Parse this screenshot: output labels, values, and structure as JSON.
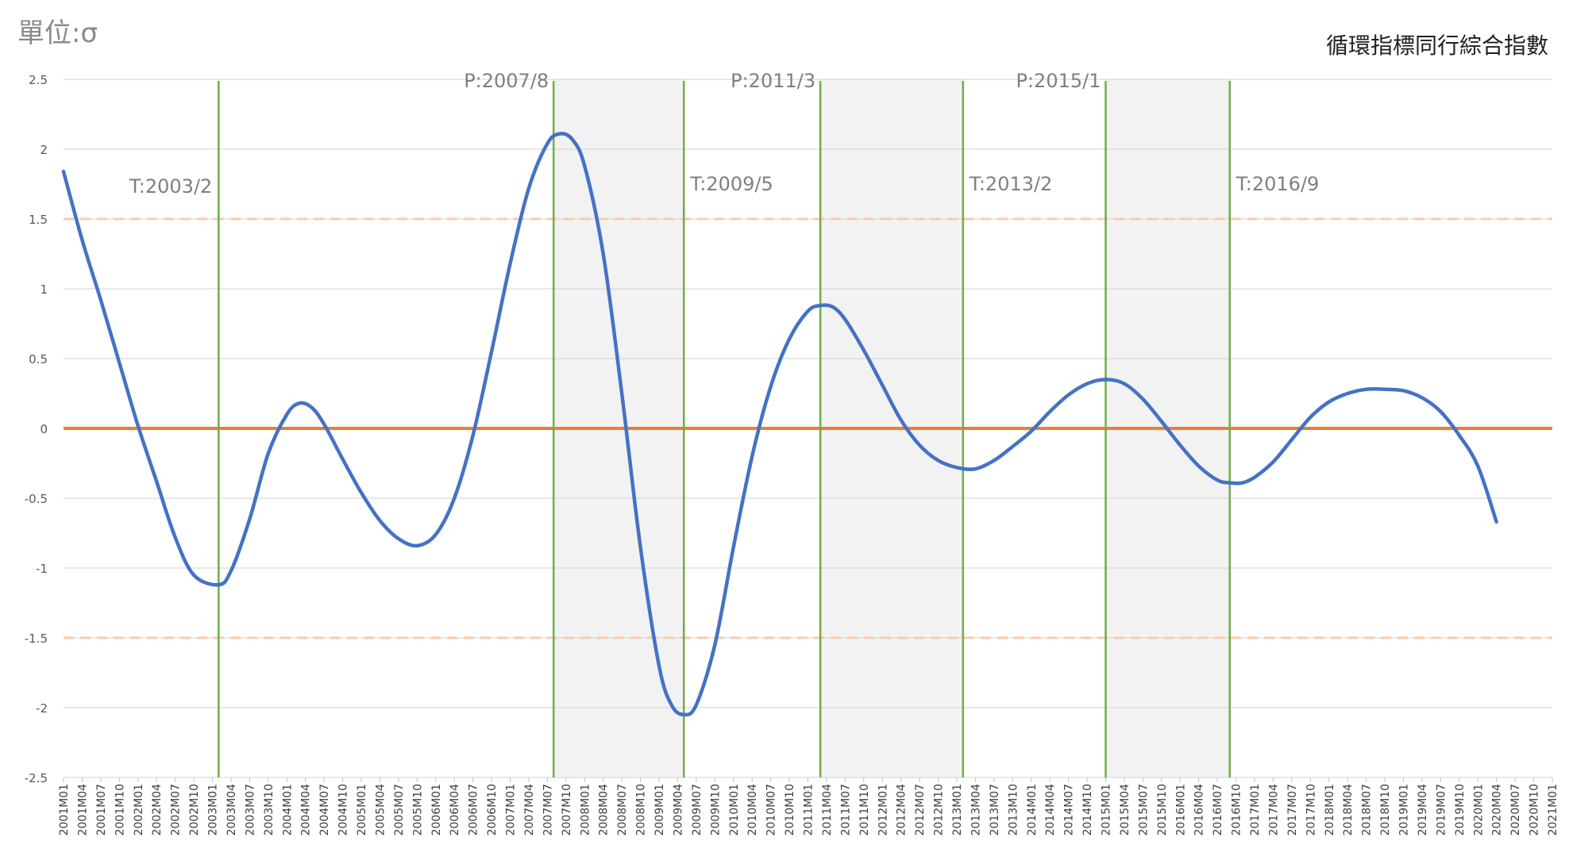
{
  "chart_data": {
    "type": "line",
    "title": "循環指標同行綜合指數",
    "unit_label": "單位:σ",
    "ylim": [
      -2.5,
      2.5
    ],
    "y_ticks": [
      2.5,
      2,
      1.5,
      1,
      0.5,
      0,
      -0.5,
      -1,
      -1.5,
      -2,
      -2.5
    ],
    "x_range": [
      "2001M01",
      "2021M01"
    ],
    "x_tick_labels": [
      "2001M01",
      "2001M04",
      "2001M07",
      "2001M10",
      "2002M01",
      "2002M04",
      "2002M07",
      "2002M10",
      "2003M01",
      "2003M04",
      "2003M07",
      "2003M10",
      "2004M01",
      "2004M04",
      "2004M07",
      "2004M10",
      "2005M01",
      "2005M04",
      "2005M07",
      "2005M10",
      "2006M01",
      "2006M04",
      "2006M07",
      "2006M10",
      "2007M01",
      "2007M04",
      "2007M07",
      "2007M10",
      "2008M01",
      "2008M04",
      "2008M07",
      "2008M10",
      "2009M01",
      "2009M04",
      "2009M07",
      "2009M10",
      "2010M01",
      "2010M04",
      "2010M07",
      "2010M10",
      "2011M01",
      "2011M04",
      "2011M07",
      "2011M10",
      "2012M01",
      "2012M04",
      "2012M07",
      "2012M10",
      "2013M01",
      "2013M04",
      "2013M07",
      "2013M10",
      "2014M01",
      "2014M04",
      "2014M07",
      "2014M10",
      "2015M01",
      "2015M04",
      "2015M07",
      "2015M10",
      "2016M01",
      "2016M04",
      "2016M07",
      "2016M10",
      "2017M01",
      "2017M04",
      "2017M07",
      "2017M10",
      "2018M01",
      "2018M04",
      "2018M07",
      "2018M10",
      "2019M01",
      "2019M04",
      "2019M07",
      "2019M10",
      "2020M01",
      "2020M04",
      "2020M07",
      "2020M10",
      "2021M01"
    ],
    "grid": true,
    "reference_lines": [
      {
        "y": 0,
        "style": "solid",
        "color": "#ED7D31"
      },
      {
        "y": 1.5,
        "style": "dashed",
        "color": "#F8CBAD"
      },
      {
        "y": -1.5,
        "style": "dashed",
        "color": "#F8CBAD"
      }
    ],
    "shaded_periods": [
      {
        "start": "2007M08",
        "end": "2009M05"
      },
      {
        "start": "2011M03",
        "end": "2013M02"
      },
      {
        "start": "2015M01",
        "end": "2016M09"
      }
    ],
    "turning_points": [
      {
        "date": "2003M02",
        "label": "T:2003/2"
      },
      {
        "date": "2007M08",
        "label": "P:2007/8"
      },
      {
        "date": "2009M05",
        "label": "T:2009/5"
      },
      {
        "date": "2011M03",
        "label": "P:2011/3"
      },
      {
        "date": "2013M02",
        "label": "T:2013/2"
      },
      {
        "date": "2015M01",
        "label": "P:2015/1"
      },
      {
        "date": "2016M09",
        "label": "T:2016/9"
      }
    ],
    "series": [
      {
        "color": "#4472C4",
        "points": [
          [
            "2001M01",
            1.84
          ],
          [
            "2001M04",
            1.35
          ],
          [
            "2001M07",
            0.92
          ],
          [
            "2001M10",
            0.47
          ],
          [
            "2002M01",
            0.02
          ],
          [
            "2002M04",
            -0.38
          ],
          [
            "2002M07",
            -0.78
          ],
          [
            "2002M10",
            -1.05
          ],
          [
            "2003M02",
            -1.12
          ],
          [
            "2003M04",
            -1.02
          ],
          [
            "2003M07",
            -0.65
          ],
          [
            "2003M10",
            -0.18
          ],
          [
            "2004M01",
            0.1
          ],
          [
            "2004M03",
            0.18
          ],
          [
            "2004M05",
            0.15
          ],
          [
            "2004M07",
            0.03
          ],
          [
            "2004M10",
            -0.22
          ],
          [
            "2005M01",
            -0.46
          ],
          [
            "2005M04",
            -0.66
          ],
          [
            "2005M07",
            -0.79
          ],
          [
            "2005M10",
            -0.84
          ],
          [
            "2006M01",
            -0.76
          ],
          [
            "2006M04",
            -0.5
          ],
          [
            "2006M07",
            -0.05
          ],
          [
            "2006M10",
            0.55
          ],
          [
            "2007M01",
            1.18
          ],
          [
            "2007M04",
            1.72
          ],
          [
            "2007M07",
            2.04
          ],
          [
            "2007M09",
            2.11
          ],
          [
            "2007M11",
            2.07
          ],
          [
            "2008M01",
            1.88
          ],
          [
            "2008M04",
            1.25
          ],
          [
            "2008M07",
            0.25
          ],
          [
            "2008M10",
            -0.85
          ],
          [
            "2009M01",
            -1.7
          ],
          [
            "2009M03",
            -1.98
          ],
          [
            "2009M05",
            -2.05
          ],
          [
            "2009M07",
            -1.98
          ],
          [
            "2009M10",
            -1.55
          ],
          [
            "2010M01",
            -0.85
          ],
          [
            "2010M04",
            -0.2
          ],
          [
            "2010M07",
            0.3
          ],
          [
            "2010M10",
            0.64
          ],
          [
            "2011M01",
            0.84
          ],
          [
            "2011M03",
            0.88
          ],
          [
            "2011M05",
            0.87
          ],
          [
            "2011M07",
            0.78
          ],
          [
            "2011M10",
            0.56
          ],
          [
            "2012M01",
            0.31
          ],
          [
            "2012M04",
            0.06
          ],
          [
            "2012M07",
            -0.12
          ],
          [
            "2012M10",
            -0.23
          ],
          [
            "2013M01",
            -0.28
          ],
          [
            "2013M04",
            -0.29
          ],
          [
            "2013M07",
            -0.23
          ],
          [
            "2013M10",
            -0.13
          ],
          [
            "2014M01",
            -0.02
          ],
          [
            "2014M04",
            0.12
          ],
          [
            "2014M07",
            0.24
          ],
          [
            "2014M10",
            0.32
          ],
          [
            "2015M01",
            0.35
          ],
          [
            "2015M04",
            0.32
          ],
          [
            "2015M07",
            0.21
          ],
          [
            "2015M10",
            0.05
          ],
          [
            "2016M01",
            -0.12
          ],
          [
            "2016M04",
            -0.27
          ],
          [
            "2016M07",
            -0.37
          ],
          [
            "2016M09",
            -0.39
          ],
          [
            "2016M11",
            -0.39
          ],
          [
            "2017M01",
            -0.35
          ],
          [
            "2017M04",
            -0.24
          ],
          [
            "2017M07",
            -0.08
          ],
          [
            "2017M10",
            0.08
          ],
          [
            "2018M01",
            0.19
          ],
          [
            "2018M04",
            0.25
          ],
          [
            "2018M07",
            0.28
          ],
          [
            "2018M10",
            0.28
          ],
          [
            "2019M01",
            0.27
          ],
          [
            "2019M04",
            0.22
          ],
          [
            "2019M07",
            0.12
          ],
          [
            "2019M10",
            -0.05
          ],
          [
            "2020M01",
            -0.27
          ],
          [
            "2020M04",
            -0.67
          ]
        ]
      }
    ]
  }
}
